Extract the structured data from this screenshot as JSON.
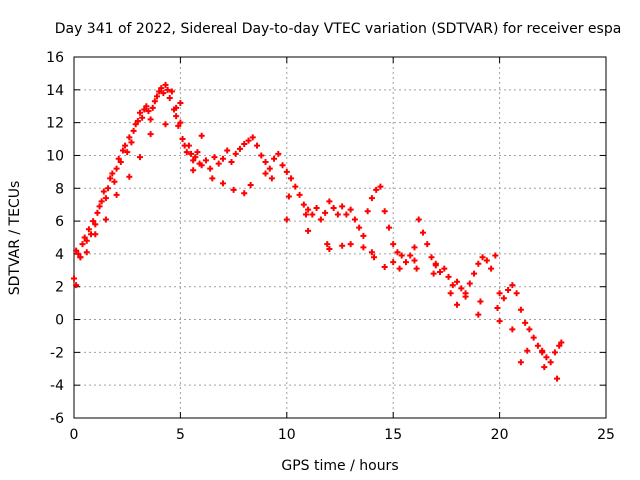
{
  "chart_data": {
    "type": "scatter",
    "title": "Day 341 of 2022, Sidereal Day-to-day VTEC variation (SDTVAR) for receiver espa",
    "xlabel": "GPS time / hours",
    "ylabel": "SDTVAR / TECUs",
    "xlim": [
      0,
      25
    ],
    "ylim": [
      -6,
      16
    ],
    "xticks": [
      0,
      5,
      10,
      15,
      20,
      25
    ],
    "yticks": [
      -6,
      -4,
      -2,
      0,
      2,
      4,
      6,
      8,
      10,
      12,
      14,
      16
    ],
    "grid": true,
    "marker": "+",
    "color": "#ff0000",
    "series": [
      {
        "name": "SDTVAR",
        "x": [
          0.0,
          0.1,
          0.2,
          0.3,
          0.4,
          0.5,
          0.6,
          0.7,
          0.8,
          0.9,
          1.0,
          1.1,
          1.2,
          1.3,
          1.4,
          1.5,
          1.6,
          1.7,
          1.8,
          1.9,
          2.0,
          2.1,
          2.2,
          2.3,
          2.4,
          2.5,
          2.6,
          2.7,
          2.8,
          2.9,
          3.0,
          3.1,
          3.2,
          3.3,
          3.4,
          3.5,
          3.6,
          3.7,
          3.8,
          3.9,
          4.0,
          4.1,
          4.2,
          4.3,
          4.4,
          4.5,
          4.6,
          4.7,
          4.8,
          4.9,
          5.0,
          5.1,
          5.2,
          5.3,
          5.4,
          5.5,
          5.6,
          5.7,
          5.8,
          5.9,
          6.0,
          6.2,
          6.4,
          6.6,
          6.8,
          7.0,
          7.2,
          7.4,
          7.6,
          7.8,
          8.0,
          8.2,
          8.4,
          8.6,
          8.8,
          9.0,
          9.2,
          9.4,
          9.6,
          9.8,
          10.0,
          10.2,
          10.4,
          10.6,
          10.8,
          11.0,
          11.2,
          11.4,
          11.6,
          11.8,
          12.0,
          12.2,
          12.4,
          12.6,
          12.8,
          13.0,
          13.2,
          13.4,
          13.6,
          13.8,
          14.0,
          14.2,
          14.4,
          14.6,
          14.8,
          15.0,
          15.2,
          15.4,
          15.6,
          15.8,
          16.0,
          16.2,
          16.4,
          16.6,
          16.8,
          17.0,
          17.2,
          17.4,
          17.6,
          17.8,
          18.0,
          18.2,
          18.4,
          18.6,
          18.8,
          19.0,
          19.2,
          19.4,
          19.6,
          19.8,
          20.0,
          20.2,
          20.4,
          20.6,
          20.8,
          21.0,
          21.2,
          21.4,
          21.6,
          21.8,
          22.0,
          22.2,
          22.4,
          22.6,
          22.8,
          22.9,
          0.1,
          0.3,
          0.6,
          1.0,
          1.5,
          2.0,
          2.6,
          3.1,
          3.6,
          4.3,
          4.8,
          5.6,
          6.5,
          7.5,
          8.3,
          9.3,
          10.1,
          10.9,
          11.9,
          12.6,
          13.6,
          14.1,
          14.6,
          15.3,
          16.1,
          16.9,
          17.7,
          18.4,
          19.1,
          19.9,
          20.6,
          21.3,
          22.1,
          22.7,
          5.0,
          6.0,
          7.0,
          8.0,
          9.0,
          10.0,
          11.0,
          12.0,
          13.0,
          14.0,
          15.0,
          16.0,
          17.0,
          18.0,
          19.0,
          20.0,
          21.0,
          22.0
        ],
        "y": [
          2.5,
          4.2,
          4.0,
          3.8,
          4.6,
          5.0,
          4.8,
          5.5,
          5.2,
          6.0,
          5.8,
          6.5,
          6.9,
          7.2,
          7.8,
          7.4,
          8.0,
          8.6,
          8.9,
          8.4,
          9.2,
          9.8,
          9.6,
          10.3,
          10.6,
          10.2,
          11.1,
          10.8,
          11.5,
          11.9,
          12.1,
          12.6,
          12.3,
          12.8,
          13.0,
          12.7,
          12.2,
          12.9,
          13.3,
          13.6,
          13.9,
          14.1,
          13.8,
          14.3,
          14.0,
          13.5,
          13.9,
          12.8,
          12.4,
          11.8,
          12.0,
          11.0,
          10.6,
          10.2,
          10.6,
          10.1,
          9.7,
          9.9,
          10.2,
          9.5,
          9.4,
          9.7,
          9.2,
          9.9,
          9.5,
          9.8,
          10.3,
          9.6,
          10.1,
          10.4,
          10.7,
          10.9,
          11.1,
          10.6,
          10.0,
          9.6,
          9.2,
          9.8,
          10.1,
          9.4,
          9.0,
          8.6,
          8.1,
          7.6,
          7.0,
          6.7,
          6.4,
          6.8,
          6.1,
          6.5,
          7.2,
          6.8,
          6.4,
          6.9,
          6.4,
          6.7,
          6.1,
          5.6,
          5.1,
          6.6,
          7.4,
          7.9,
          8.1,
          6.6,
          5.6,
          4.6,
          4.1,
          3.9,
          3.5,
          3.9,
          4.4,
          6.1,
          5.3,
          4.6,
          3.8,
          3.4,
          2.9,
          3.1,
          2.6,
          2.1,
          2.3,
          1.9,
          1.6,
          2.2,
          2.8,
          3.4,
          3.8,
          3.6,
          3.1,
          3.9,
          1.6,
          1.3,
          1.8,
          2.1,
          1.6,
          0.6,
          -0.2,
          -0.6,
          -1.1,
          -1.6,
          -1.9,
          -2.3,
          -2.6,
          -2.0,
          -1.6,
          -1.4,
          2.1,
          3.8,
          4.1,
          5.2,
          6.1,
          7.6,
          8.7,
          9.9,
          11.3,
          11.9,
          12.9,
          9.1,
          8.6,
          7.9,
          8.2,
          8.6,
          7.5,
          6.4,
          4.6,
          4.5,
          4.4,
          3.8,
          3.2,
          3.1,
          3.1,
          2.8,
          1.6,
          1.4,
          1.1,
          0.7,
          -0.6,
          -1.9,
          -2.9,
          -3.6,
          13.2,
          11.2,
          8.3,
          7.7,
          8.9,
          6.1,
          5.4,
          4.3,
          4.6,
          4.1,
          3.5,
          3.6,
          3.3,
          0.9,
          0.3,
          -0.1,
          -2.6,
          -2.0
        ]
      }
    ]
  }
}
